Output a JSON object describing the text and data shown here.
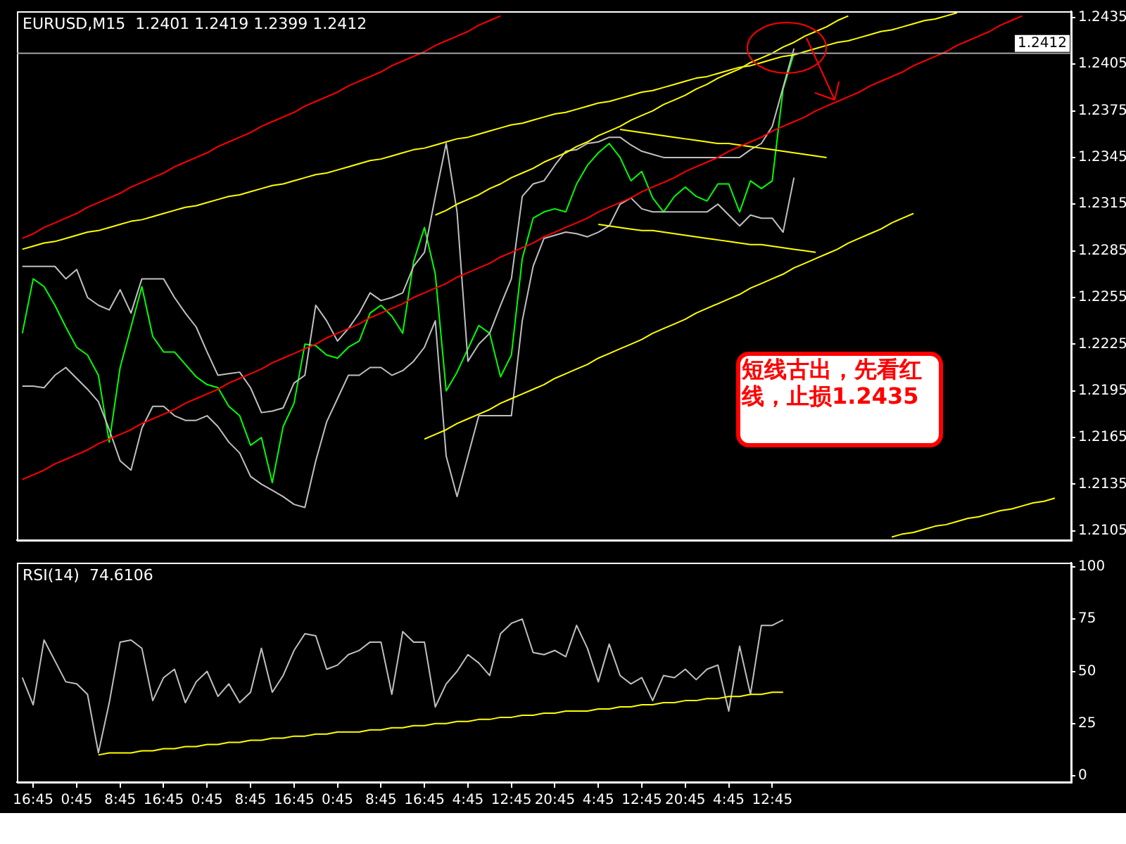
{
  "chart_data": [
    {
      "type": "line",
      "title": "EURUSD,M15  1.2401 1.2419 1.2399 1.2412",
      "tick_labels": "y",
      "categories": [
        null,
        null,
        null,
        null,
        null,
        null,
        null,
        null,
        null,
        null,
        null,
        null,
        null,
        null,
        null,
        null,
        null,
        null,
        null,
        null,
        null,
        null,
        null,
        null,
        null,
        null,
        null,
        null,
        null,
        null,
        null,
        null,
        null,
        null,
        null,
        null,
        null,
        null,
        null,
        null,
        null,
        null,
        null,
        null,
        null,
        null,
        null,
        null,
        null,
        null,
        null,
        null,
        null,
        null,
        null,
        null,
        null,
        null,
        null,
        null,
        null,
        null,
        null,
        null,
        null,
        null,
        null,
        null,
        null,
        null,
        null,
        null,
        null,
        null,
        null,
        null,
        null,
        null,
        null,
        null,
        null,
        null,
        null,
        null,
        null,
        null,
        null,
        null,
        null,
        null,
        null,
        null,
        null,
        null,
        null,
        null,
        null
      ],
      "ylim": [
        1.2099,
        1.2439
      ],
      "yticks": [
        1.2105,
        1.2135,
        1.2165,
        1.2195,
        1.2225,
        1.2255,
        1.2285,
        1.2315,
        1.2345,
        1.2375,
        1.2405,
        1.2435
      ],
      "series": [
        {
          "color": "#ff0000",
          "values": [
            1.2293,
            1.2296,
            1.23,
            1.2303,
            1.2306,
            1.2309,
            1.2313,
            1.2316,
            1.2319,
            1.2322,
            1.2326,
            1.2329,
            1.2332,
            1.2335,
            1.2339,
            1.2342,
            1.2345,
            1.2348,
            1.2352,
            1.2355,
            1.2358,
            1.2361,
            1.2365,
            1.2368,
            1.2371,
            1.2374,
            1.2378,
            1.2381,
            1.2384,
            1.2387,
            1.2391,
            1.2394,
            1.2397,
            1.24,
            1.2404,
            1.2407,
            1.241,
            1.2413,
            1.2417,
            1.242,
            1.2423,
            1.2426,
            1.243,
            1.2433,
            1.2436,
            null,
            null,
            null,
            null,
            null,
            null,
            null,
            null,
            null,
            null,
            null,
            null,
            null,
            null,
            null,
            null,
            null,
            null,
            null,
            null,
            null,
            null,
            null,
            null,
            null,
            null,
            null,
            null,
            null,
            null,
            null,
            null,
            null,
            null,
            null,
            null,
            null,
            null,
            null,
            null,
            null,
            null,
            null,
            null,
            null,
            null,
            null,
            null,
            null,
            null,
            null,
            null
          ]
        },
        {
          "color": "#ff0000",
          "values": [
            1.2138,
            1.2141,
            1.2144,
            1.2148,
            1.2151,
            1.2154,
            1.2157,
            1.2161,
            1.2164,
            1.2167,
            1.217,
            1.2174,
            1.2177,
            1.218,
            1.2183,
            1.2187,
            1.219,
            1.2193,
            1.2196,
            1.22,
            1.2203,
            1.2206,
            1.2209,
            1.2213,
            1.2216,
            1.2219,
            1.2222,
            1.2225,
            1.2229,
            1.2232,
            1.2235,
            1.2238,
            1.2242,
            1.2245,
            1.2248,
            1.2251,
            1.2255,
            1.2258,
            1.2261,
            1.2264,
            1.2268,
            1.2271,
            1.2274,
            1.2277,
            1.2281,
            1.2284,
            1.2287,
            1.229,
            1.2294,
            1.2297,
            1.23,
            1.2303,
            1.2306,
            1.231,
            1.2313,
            1.2316,
            1.2319,
            1.2323,
            1.2326,
            1.2329,
            1.2332,
            1.2336,
            1.2339,
            1.2342,
            1.2345,
            1.2349,
            1.2352,
            1.2355,
            1.2358,
            1.2362,
            1.2365,
            1.2368,
            1.2371,
            1.2375,
            1.2378,
            1.2381,
            1.2384,
            1.2387,
            1.2391,
            1.2394,
            1.2397,
            1.24,
            1.2404,
            1.2407,
            1.241,
            1.2413,
            1.2417,
            1.242,
            1.2423,
            1.2426,
            1.243,
            1.2433,
            1.2436,
            null,
            null,
            null,
            null
          ]
        },
        {
          "color": "#ffff00",
          "values": [
            1.2286,
            1.2288,
            1.229,
            1.2291,
            1.2293,
            1.2295,
            1.2297,
            1.2298,
            1.23,
            1.2302,
            1.2304,
            1.2305,
            1.2307,
            1.2309,
            1.2311,
            1.2313,
            1.2314,
            1.2316,
            1.2318,
            1.232,
            1.2321,
            1.2323,
            1.2325,
            1.2327,
            1.2328,
            1.233,
            1.2332,
            1.2334,
            1.2335,
            1.2337,
            1.2339,
            1.2341,
            1.2343,
            1.2344,
            1.2346,
            1.2348,
            1.235,
            1.2351,
            1.2353,
            1.2355,
            1.2357,
            1.2358,
            1.236,
            1.2362,
            1.2364,
            1.2366,
            1.2367,
            1.2369,
            1.2371,
            1.2373,
            1.2374,
            1.2376,
            1.2378,
            1.238,
            1.2381,
            1.2383,
            1.2385,
            1.2387,
            1.2388,
            1.239,
            1.2392,
            1.2394,
            1.2396,
            1.2397,
            1.2399,
            1.2401,
            1.2403,
            1.2404,
            1.2406,
            1.2408,
            1.241,
            1.2411,
            1.2413,
            1.2415,
            1.2417,
            1.2419,
            1.242,
            1.2422,
            1.2424,
            1.2426,
            1.2427,
            1.2429,
            1.2431,
            1.2433,
            1.2434,
            1.2436,
            1.2438,
            null,
            null,
            null,
            null,
            null,
            null,
            null,
            null,
            null,
            null
          ]
        },
        {
          "color": "#ffff00",
          "values": [
            null,
            null,
            null,
            null,
            null,
            null,
            null,
            null,
            null,
            null,
            null,
            null,
            null,
            null,
            null,
            null,
            null,
            null,
            null,
            null,
            null,
            null,
            null,
            null,
            null,
            null,
            null,
            null,
            null,
            null,
            null,
            null,
            null,
            null,
            null,
            null,
            null,
            null,
            1.2308,
            1.2311,
            1.2315,
            1.2318,
            1.2321,
            1.2325,
            1.2328,
            1.2332,
            1.2335,
            1.2338,
            1.2342,
            1.2345,
            1.2348,
            1.2352,
            1.2355,
            1.2359,
            1.2362,
            1.2365,
            1.2369,
            1.2372,
            1.2375,
            1.2379,
            1.2382,
            1.2385,
            1.2389,
            1.2392,
            1.2396,
            1.2399,
            1.2402,
            1.2406,
            1.2409,
            1.2412,
            1.2416,
            1.2419,
            1.2423,
            1.2426,
            1.2429,
            1.2433,
            1.2436,
            null,
            null,
            null,
            null,
            null,
            null,
            null,
            null,
            null,
            null,
            null,
            null,
            null,
            null,
            null,
            null,
            null,
            null,
            null,
            null
          ]
        },
        {
          "color": "#ffff00",
          "values": [
            null,
            null,
            null,
            null,
            null,
            null,
            null,
            null,
            null,
            null,
            null,
            null,
            null,
            null,
            null,
            null,
            null,
            null,
            null,
            null,
            null,
            null,
            null,
            null,
            null,
            null,
            null,
            null,
            null,
            null,
            null,
            null,
            null,
            null,
            null,
            null,
            null,
            1.2164,
            1.2167,
            1.217,
            1.2174,
            1.2177,
            1.218,
            1.2183,
            1.2187,
            1.219,
            1.2193,
            1.2196,
            1.2199,
            1.2203,
            1.2206,
            1.2209,
            1.2212,
            1.2216,
            1.2219,
            1.2222,
            1.2225,
            1.2228,
            1.2232,
            1.2235,
            1.2238,
            1.2241,
            1.2245,
            1.2248,
            1.2251,
            1.2254,
            1.2257,
            1.2261,
            1.2264,
            1.2267,
            1.227,
            1.2274,
            1.2277,
            1.228,
            1.2283,
            1.2286,
            1.229,
            1.2293,
            1.2296,
            1.2299,
            1.2303,
            1.2306,
            1.2309,
            null,
            null,
            null,
            null,
            null,
            null,
            null,
            null,
            null,
            null,
            null,
            null,
            null,
            null
          ]
        },
        {
          "color": "#ffff00",
          "values": [
            null,
            null,
            null,
            null,
            null,
            null,
            null,
            null,
            null,
            null,
            null,
            null,
            null,
            null,
            null,
            null,
            null,
            null,
            null,
            null,
            null,
            null,
            null,
            null,
            null,
            null,
            null,
            null,
            null,
            null,
            null,
            null,
            null,
            null,
            null,
            null,
            null,
            null,
            null,
            null,
            null,
            null,
            null,
            null,
            null,
            null,
            null,
            null,
            null,
            null,
            null,
            null,
            null,
            null,
            null,
            null,
            null,
            null,
            null,
            null,
            null,
            null,
            null,
            null,
            null,
            null,
            null,
            null,
            null,
            null,
            null,
            null,
            null,
            null,
            null,
            null,
            null,
            null,
            null,
            null,
            1.2101,
            1.2103,
            1.2104,
            1.2106,
            1.2108,
            1.2109,
            1.2111,
            1.2113,
            1.2114,
            1.2116,
            1.2118,
            1.2119,
            1.2121,
            1.2123,
            1.2124,
            1.2126,
            null
          ]
        },
        {
          "color": "#ffff00",
          "values": [
            null,
            null,
            null,
            null,
            null,
            null,
            null,
            null,
            null,
            null,
            null,
            null,
            null,
            null,
            null,
            null,
            null,
            null,
            null,
            null,
            null,
            null,
            null,
            null,
            null,
            null,
            null,
            null,
            null,
            null,
            null,
            null,
            null,
            null,
            null,
            null,
            null,
            null,
            null,
            null,
            null,
            null,
            null,
            null,
            null,
            null,
            null,
            null,
            null,
            null,
            null,
            null,
            null,
            null,
            null,
            1.2363,
            1.2362,
            1.2361,
            1.236,
            1.2359,
            1.2358,
            1.2357,
            1.2356,
            1.2355,
            1.2354,
            1.2354,
            1.2353,
            1.2352,
            1.2351,
            1.235,
            1.2349,
            1.2348,
            1.2347,
            1.2346,
            1.2345,
            null,
            null,
            null,
            null,
            null,
            null,
            null,
            null,
            null,
            null,
            null,
            null,
            null,
            null,
            null,
            null,
            null,
            null,
            null,
            null,
            null,
            null
          ]
        },
        {
          "color": "#ffff00",
          "values": [
            null,
            null,
            null,
            null,
            null,
            null,
            null,
            null,
            null,
            null,
            null,
            null,
            null,
            null,
            null,
            null,
            null,
            null,
            null,
            null,
            null,
            null,
            null,
            null,
            null,
            null,
            null,
            null,
            null,
            null,
            null,
            null,
            null,
            null,
            null,
            null,
            null,
            null,
            null,
            null,
            null,
            null,
            null,
            null,
            null,
            null,
            null,
            null,
            null,
            null,
            null,
            null,
            null,
            1.2302,
            1.2301,
            1.23,
            1.2299,
            1.2298,
            1.2298,
            1.2297,
            1.2296,
            1.2295,
            1.2294,
            1.2293,
            1.2292,
            1.2291,
            1.229,
            1.2289,
            1.2289,
            1.2288,
            1.2287,
            1.2286,
            1.2285,
            1.2284,
            null,
            null,
            null,
            null,
            null,
            null,
            null,
            null,
            null,
            null,
            null,
            null,
            null,
            null,
            null,
            null,
            null,
            null,
            null,
            null,
            null,
            null,
            null
          ]
        },
        {
          "color": "#c0c0c0",
          "values": [
            1.2275,
            1.2275,
            1.2275,
            1.2275,
            1.2267,
            1.2273,
            1.2255,
            1.225,
            1.2247,
            1.226,
            1.2245,
            1.2267,
            1.2267,
            1.2267,
            1.2255,
            1.2245,
            1.2236,
            1.222,
            1.2205,
            1.2206,
            1.2207,
            1.2197,
            1.2181,
            1.2182,
            1.2184,
            1.22,
            1.2205,
            1.225,
            1.224,
            1.2227,
            1.2235,
            1.2245,
            1.2258,
            1.2253,
            1.2255,
            1.2258,
            1.2275,
            1.2284,
            1.232,
            1.2354,
            1.231,
            1.2214,
            1.2225,
            1.2232,
            1.225,
            1.2267,
            1.232,
            1.2328,
            1.233,
            1.234,
            1.2349,
            1.235,
            1.2354,
            1.2355,
            1.2358,
            1.2358,
            1.2353,
            1.2349,
            1.2347,
            1.2345,
            1.2345,
            1.2345,
            1.2345,
            1.2345,
            1.2345,
            1.2345,
            1.2345,
            1.235,
            1.2354,
            1.2365,
            1.239,
            1.2415,
            null,
            null,
            null,
            null,
            null,
            null,
            null,
            null,
            null,
            null,
            null,
            null,
            null,
            null,
            null,
            null,
            null,
            null,
            null,
            null,
            null,
            null,
            null,
            null,
            null
          ]
        },
        {
          "color": "#c0c0c0",
          "values": [
            1.2198,
            1.2198,
            1.2197,
            1.2205,
            1.221,
            1.2203,
            1.2196,
            1.2188,
            1.217,
            1.215,
            1.2144,
            1.2171,
            1.2185,
            1.2185,
            1.2179,
            1.2176,
            1.2176,
            1.2179,
            1.2172,
            1.2162,
            1.2155,
            1.214,
            1.2135,
            1.2131,
            1.2127,
            1.2122,
            1.212,
            1.215,
            1.2175,
            1.219,
            1.2205,
            1.2205,
            1.221,
            1.221,
            1.2205,
            1.2208,
            1.2214,
            1.2223,
            1.224,
            1.2153,
            1.2127,
            1.2153,
            1.2179,
            1.2179,
            1.2179,
            1.2179,
            1.224,
            1.2275,
            1.2293,
            1.2295,
            1.2297,
            1.2296,
            1.2294,
            1.2297,
            1.2301,
            1.2315,
            1.2319,
            1.2312,
            1.231,
            1.231,
            1.231,
            1.231,
            1.231,
            1.231,
            1.2315,
            1.2308,
            1.2301,
            1.2308,
            1.2306,
            1.2306,
            1.2297,
            1.2332,
            null,
            null,
            null,
            null,
            null,
            null,
            null,
            null,
            null,
            null,
            null,
            null,
            null,
            null,
            null,
            null,
            null,
            null,
            null,
            null,
            null,
            null,
            null,
            null,
            null
          ]
        },
        {
          "color": "#00ff00",
          "values": [
            1.2232,
            1.2267,
            1.2262,
            1.225,
            1.2236,
            1.2223,
            1.2218,
            1.2205,
            1.2162,
            1.221,
            1.2236,
            1.2262,
            1.223,
            1.222,
            1.222,
            1.2212,
            1.2204,
            1.2199,
            1.2197,
            1.2185,
            1.2179,
            1.216,
            1.2165,
            1.2136,
            1.2172,
            1.2187,
            1.2225,
            1.2224,
            1.2218,
            1.2216,
            1.2223,
            1.2227,
            1.2245,
            1.225,
            1.2243,
            1.2232,
            1.2278,
            1.23,
            1.227,
            1.2195,
            1.2207,
            1.2222,
            1.2237,
            1.2232,
            1.2204,
            1.2218,
            1.228,
            1.2306,
            1.231,
            1.2312,
            1.231,
            1.2328,
            1.234,
            1.2348,
            1.2354,
            1.2345,
            1.233,
            1.2336,
            1.2319,
            1.231,
            1.232,
            1.2326,
            1.232,
            1.2317,
            1.2328,
            1.2328,
            1.231,
            1.233,
            1.2325,
            1.233,
            1.2389,
            1.2412,
            null,
            null,
            null,
            null,
            null,
            null,
            null,
            null,
            null,
            null,
            null,
            null,
            null,
            null,
            null,
            null,
            null,
            null,
            null,
            null,
            null,
            null,
            null,
            null,
            null
          ]
        }
      ],
      "ref_lines": [
        {
          "axis": "y",
          "value": 1.2412,
          "label": "1.2412",
          "color": "#a0a0a0"
        }
      ],
      "annotations": [
        "短线古出，先看红线，止损1.2435"
      ]
    },
    {
      "type": "line",
      "title": "RSI(14)  74.6106",
      "categories": [
        null,
        "16:45",
        null,
        null,
        null,
        "0:45",
        null,
        null,
        null,
        "8:45",
        null,
        null,
        null,
        "16:45",
        null,
        null,
        null,
        "0:45",
        null,
        null,
        null,
        "8:45",
        null,
        null,
        null,
        "16:45",
        null,
        null,
        null,
        "0:45",
        null,
        null,
        null,
        "8:45",
        null,
        null,
        null,
        "16:45",
        null,
        null,
        null,
        "4:45",
        null,
        null,
        null,
        "12:45",
        null,
        null,
        null,
        "20:45",
        null,
        null,
        null,
        "4:45",
        null,
        null,
        null,
        "12:45",
        null,
        null,
        null,
        "20:45",
        null,
        null,
        null,
        "4:45",
        null,
        null,
        null,
        "12:45",
        null,
        null,
        null,
        null,
        null,
        null,
        null,
        null,
        null,
        null,
        null,
        null,
        null,
        null,
        null,
        null,
        null,
        null,
        null,
        null,
        null,
        null,
        null,
        null,
        null,
        null,
        null
      ],
      "ylim": [
        -3,
        102
      ],
      "yticks": [
        0,
        25,
        50,
        75,
        100
      ],
      "series": [
        {
          "color": "#ffff00",
          "values": [
            null,
            null,
            null,
            null,
            null,
            null,
            null,
            10,
            11,
            11,
            11,
            12,
            12,
            13,
            13,
            14,
            14,
            15,
            15,
            16,
            16,
            17,
            17,
            18,
            18,
            19,
            19,
            20,
            20,
            21,
            21,
            21,
            22,
            22,
            23,
            23,
            24,
            24,
            25,
            25,
            26,
            26,
            27,
            27,
            28,
            28,
            29,
            29,
            30,
            30,
            31,
            31,
            31,
            32,
            32,
            33,
            33,
            34,
            34,
            35,
            35,
            36,
            36,
            37,
            37,
            38,
            38,
            39,
            39,
            40,
            40,
            null,
            null,
            null,
            null,
            null,
            null,
            null,
            null,
            null,
            null,
            null,
            null,
            null,
            null,
            null,
            null,
            null,
            null,
            null,
            null,
            null,
            null,
            null,
            null,
            null,
            null
          ]
        },
        {
          "color": "#c0c0c0",
          "values": [
            47,
            34,
            65,
            55,
            45,
            44,
            39,
            11,
            35,
            64,
            65,
            61,
            36,
            47,
            51,
            35,
            45,
            50,
            38,
            44,
            35,
            40,
            61,
            40,
            48,
            60,
            68,
            67,
            51,
            53,
            58,
            60,
            64,
            64,
            39,
            69,
            64,
            64,
            33,
            44,
            50,
            58,
            54,
            48,
            68,
            73,
            75,
            59,
            58,
            60,
            57,
            72,
            61,
            45,
            63,
            48,
            44,
            47,
            36,
            48,
            47,
            51,
            46,
            51,
            53,
            31,
            62,
            39,
            72,
            72,
            74.6,
            null,
            null,
            null,
            null,
            null,
            null,
            null,
            null,
            null,
            null,
            null,
            null,
            null,
            null,
            null,
            null,
            null,
            null,
            null,
            null,
            null,
            null,
            null,
            null,
            null,
            null
          ]
        }
      ]
    }
  ]
}
